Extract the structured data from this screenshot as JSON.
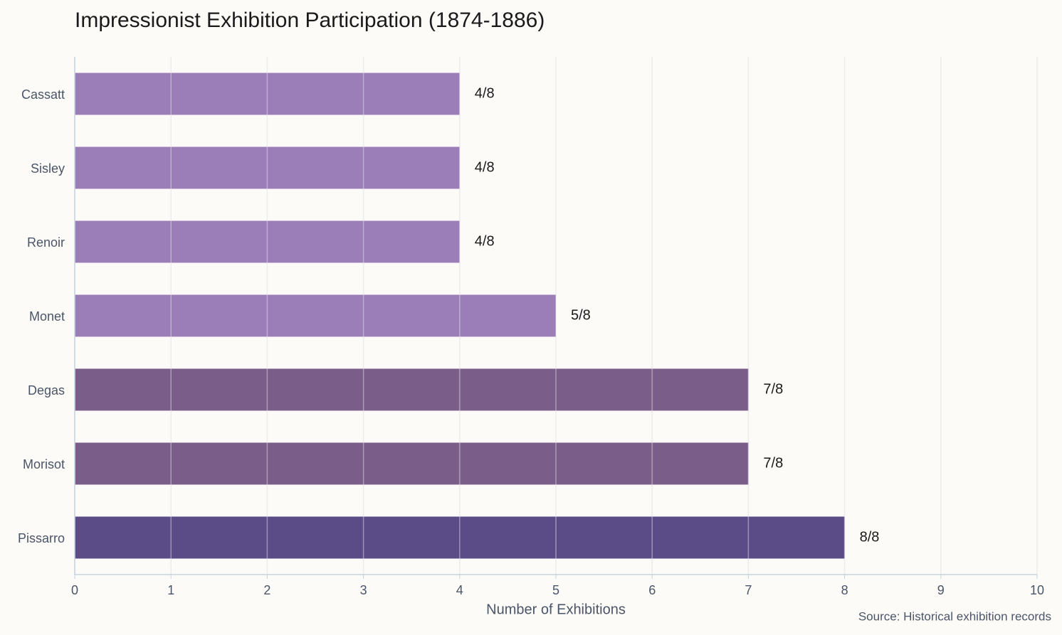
{
  "chart_data": {
    "type": "barh",
    "title": "Impressionist Exhibition Participation (1874-1886)",
    "categories": [
      "Cassatt",
      "Sisley",
      "Renoir",
      "Monet",
      "Degas",
      "Morisot",
      "Pissarro"
    ],
    "values": [
      4,
      4,
      4,
      5,
      7,
      7,
      8
    ],
    "value_labels": [
      "4/8",
      "4/8",
      "4/8",
      "5/8",
      "7/8",
      "7/8",
      "8/8"
    ],
    "colors": [
      "#9b7eb8",
      "#9b7eb8",
      "#9b7eb8",
      "#9b7eb8",
      "#7b5d89",
      "#7b5d89",
      "#5b4b87"
    ],
    "xlim": [
      0,
      10
    ],
    "xticks": [
      0,
      1,
      2,
      3,
      4,
      5,
      6,
      7,
      8,
      9,
      10
    ],
    "xlabel": "Number of Exhibitions",
    "source": "Source: Historical exhibition records",
    "grid": true
  }
}
